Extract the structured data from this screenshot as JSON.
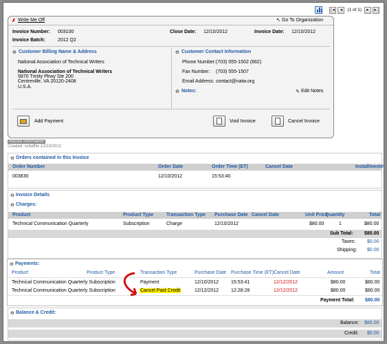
{
  "pager": {
    "first": "|◄",
    "prev": "◄",
    "text": "(1 of 1)",
    "next": "►",
    "last": "►|"
  },
  "header": {
    "write_off": "Write Me Off",
    "go_to_org": "Go To Organization",
    "invoice_number_label": "Invoice Number:",
    "invoice_number": "003100",
    "close_date_label": "Close Date:",
    "close_date": "12/10/2012",
    "invoice_date_label": "Invoice Date:",
    "invoice_date": "12/10/2012",
    "invoice_batch_label": "Invoice Batch:",
    "invoice_batch": "2012 Q2"
  },
  "billing": {
    "title": "Customer Billing Name & Address",
    "name": "National Association of Technical Writers",
    "addr_name": "National Association of Technical Writers",
    "addr1": "5870 Trinity Pkwy Ste 200",
    "addr2": "Centreville, VA 20120-2408",
    "country": "U.S.A."
  },
  "contact": {
    "title": "Customer Contact Information",
    "phone_label": "Phone Number:",
    "phone": "(703) 555-1502 (662)",
    "fax_label": "Fax Number:",
    "fax": "(703) 555-1507",
    "email_label": "Email Address:",
    "email": "contact@natw.org",
    "notes_label": "Notes:",
    "edit_notes": "Edit Notes"
  },
  "actions": {
    "add_payment": "Add Payment",
    "void_invoice": "Void Invoice",
    "cancel_invoice": "Cancel Invoice"
  },
  "record": {
    "tab": "Record Information",
    "created": "Created: sshaffer-12/10/2012"
  },
  "orders": {
    "title": "Orders contained in this Invoice",
    "headers": [
      "Order Number",
      "Order Date",
      "Order Time (ET)",
      "Cancel Date",
      "Installment#"
    ],
    "rows": [
      [
        "003830",
        "12/10/2012",
        "15:53:40",
        "",
        ""
      ]
    ]
  },
  "details": {
    "title": "Invoice Details",
    "charges_title": "Charges:",
    "headers": [
      "Product",
      "Product Type",
      "Transaction Type",
      "Purchase Date",
      "Cancel Date",
      "Unit Price",
      "Quantity",
      "Total"
    ],
    "rows": [
      [
        "Technical Communication Quarterly",
        "Subscription",
        "Charge",
        "12/10/2012",
        "",
        "$80.00",
        "1",
        "$80.00"
      ]
    ],
    "subtotal_label": "Sub Total:",
    "subtotal": "$80.00",
    "taxes_label": "Taxes:",
    "taxes": "$0.00",
    "shipping_label": "Shipping:",
    "shipping": "$0.00"
  },
  "payments": {
    "title": "Payments:",
    "headers": [
      "Product",
      "Product Type",
      "Transaction Type",
      "Purchase Date",
      "Purchase Time (ET)",
      "Cancel Date",
      "Amount",
      "Total"
    ],
    "rows": [
      [
        "Technical Communication Quarterly Subscription",
        "",
        "Payment",
        "12/10/2012",
        "15:53:41",
        "12/12/2012",
        "$80.00",
        "$80.00"
      ],
      [
        "Technical Communication Quarterly Subscription",
        "",
        "Cancel Paid Credit",
        "12/12/2012",
        "12:28:28",
        "12/12/2012",
        "$80.00",
        "$80.00"
      ]
    ],
    "total_label": "Payment Total:",
    "total": "$80.00"
  },
  "balance": {
    "title": "Balance & Credit:",
    "balance_label": "Balance:",
    "balance": "$80.00",
    "credit_label": "Credit:",
    "credit": "$0.00"
  },
  "colors": {
    "link": "#1f5aa6",
    "cancel_date": "#d01010",
    "highlight": "#fff200",
    "arrow": "#d01010"
  }
}
